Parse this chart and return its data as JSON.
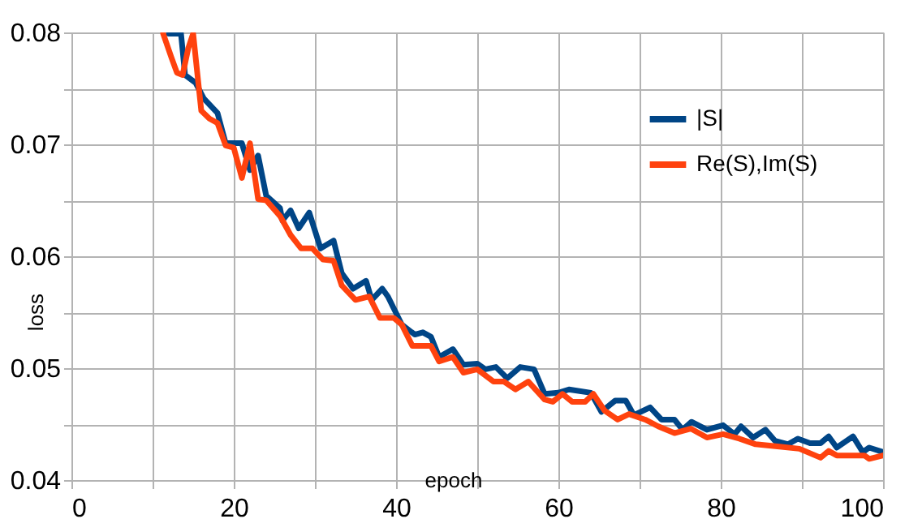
{
  "chart_data": {
    "type": "line",
    "xlabel": "epoch",
    "ylabel": "loss",
    "xlim": [
      0,
      100
    ],
    "xticks": [
      0,
      {
        "value": 10,
        "label": null
      },
      20,
      {
        "value": 30,
        "label": null
      },
      40,
      {
        "value": 50,
        "label": null
      },
      60,
      {
        "value": 70,
        "label": null
      },
      80,
      {
        "value": 90,
        "label": null
      },
      100
    ],
    "ylim": [
      0.04,
      0.08
    ],
    "yticks": [
      0.04,
      {
        "value": 0.045,
        "label": null
      },
      0.05,
      {
        "value": 0.055,
        "label": null
      },
      0.06,
      {
        "value": 0.065,
        "label": null
      },
      0.07,
      {
        "value": 0.075,
        "label": null
      },
      0.08
    ],
    "grid": true,
    "legend": "top right",
    "marker": "none",
    "line_style": "solid",
    "series": [
      {
        "name": "|S|",
        "color": "#004586",
        "x": [
          12,
          13.5,
          14,
          15.3,
          16.3,
          18,
          19,
          21,
          22,
          23,
          24,
          25.7,
          26,
          27,
          28,
          29.3,
          30.7,
          32.3,
          33.3,
          34.7,
          36.3,
          37,
          38.3,
          39,
          40.7,
          42.3,
          43.3,
          44.3,
          45.3,
          47,
          48.3,
          50,
          51,
          52.3,
          53.7,
          55.3,
          57,
          58.3,
          60,
          61.3,
          64,
          65.3,
          67,
          68.3,
          69.3,
          71.3,
          72.7,
          74.3,
          75.3,
          76.4,
          78.3,
          80.3,
          81.7,
          82.5,
          84,
          85.5,
          86.7,
          88.3,
          89.5,
          91,
          92.3,
          93.3,
          94.3,
          96.3,
          97.5,
          98.3,
          100
        ],
        "values": [
          0.0799,
          0.0799,
          0.0762,
          0.0755,
          0.0741,
          0.0728,
          0.0701,
          0.0701,
          0.0677,
          0.069,
          0.0654,
          0.0643,
          0.0632,
          0.0641,
          0.0625,
          0.0639,
          0.0607,
          0.0614,
          0.0585,
          0.0571,
          0.0578,
          0.0561,
          0.0571,
          0.0564,
          0.0539,
          0.053,
          0.0532,
          0.0528,
          0.051,
          0.0517,
          0.0503,
          0.0504,
          0.0499,
          0.0501,
          0.0491,
          0.0501,
          0.0499,
          0.0477,
          0.0478,
          0.0481,
          0.0478,
          0.0461,
          0.0471,
          0.0471,
          0.0458,
          0.0465,
          0.0454,
          0.0454,
          0.0445,
          0.0452,
          0.0445,
          0.0449,
          0.0441,
          0.0448,
          0.0438,
          0.0445,
          0.0435,
          0.0432,
          0.0437,
          0.0433,
          0.0433,
          0.0439,
          0.0429,
          0.0439,
          0.0425,
          0.0429,
          0.0425
        ]
      },
      {
        "name": "Re(S),Im(S)",
        "color": "#ff420e",
        "x": [
          11.3,
          12.3,
          13,
          13.7,
          14.4,
          15,
          15.3,
          16,
          17,
          18,
          19,
          20,
          21,
          22,
          23,
          24,
          25.7,
          27,
          28.3,
          29.7,
          31,
          32.3,
          33.3,
          35,
          36.7,
          38,
          39.7,
          40.7,
          42,
          44.3,
          45.3,
          47,
          48.3,
          50,
          52,
          53.3,
          54.7,
          56.3,
          58.3,
          59.3,
          60.5,
          61.7,
          63.3,
          64.3,
          65.7,
          67.3,
          68.7,
          70.7,
          72.3,
          74.3,
          76.3,
          78.3,
          80.3,
          82.3,
          84.3,
          87,
          89.7,
          92.3,
          93.3,
          94.3,
          97.7,
          98.3,
          100
        ],
        "values": [
          0.0799,
          0.0778,
          0.0764,
          0.0762,
          0.0786,
          0.0799,
          0.0778,
          0.073,
          0.0723,
          0.0719,
          0.0699,
          0.0697,
          0.067,
          0.0701,
          0.0651,
          0.065,
          0.0636,
          0.0619,
          0.0607,
          0.0607,
          0.0597,
          0.0596,
          0.0574,
          0.0561,
          0.0564,
          0.0545,
          0.0545,
          0.0539,
          0.052,
          0.052,
          0.0506,
          0.051,
          0.0496,
          0.0499,
          0.0488,
          0.0488,
          0.0481,
          0.0488,
          0.0472,
          0.047,
          0.0477,
          0.047,
          0.047,
          0.0477,
          0.0462,
          0.0454,
          0.0459,
          0.0454,
          0.0448,
          0.0442,
          0.0446,
          0.0438,
          0.0441,
          0.0437,
          0.0432,
          0.043,
          0.0428,
          0.042,
          0.0426,
          0.0422,
          0.0422,
          0.0419,
          0.0422
        ]
      }
    ]
  }
}
